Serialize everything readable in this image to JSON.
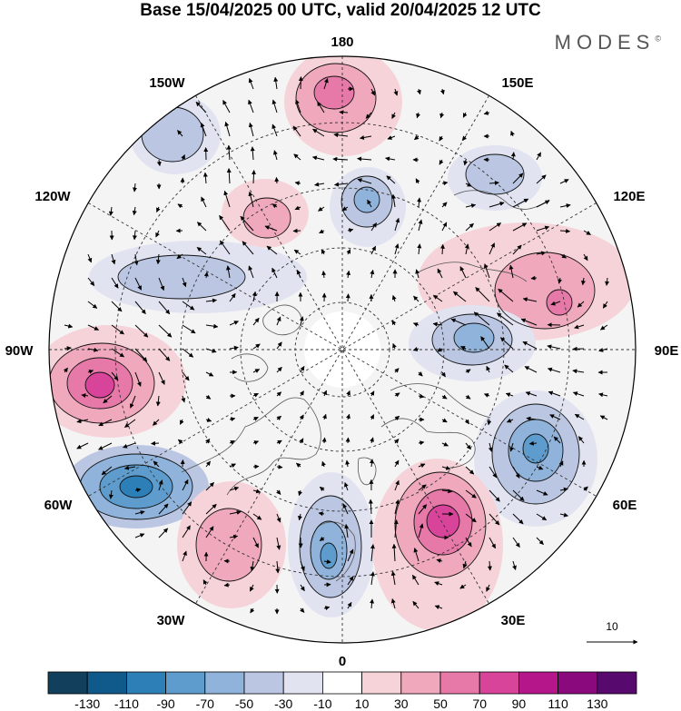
{
  "title": "Base 15/04/2025 00 UTC, valid 20/04/2025 12 UTC",
  "brand": "MODES",
  "brand_mark": "©",
  "longitude_labels": {
    "lon_180": "180",
    "lon_150w": "150W",
    "lon_150e": "150E",
    "lon_120w": "120W",
    "lon_120e": "120E",
    "lon_90w": "90W",
    "lon_90e": "90E",
    "lon_60w": "60W",
    "lon_60e": "60E",
    "lon_30w": "30W",
    "lon_30e": "30E",
    "lon_0": "0"
  },
  "reference_vector": {
    "value": "10"
  },
  "colorbar": {
    "labels": [
      "-130",
      "-110",
      "-90",
      "-70",
      "-50",
      "-30",
      "-10",
      "10",
      "30",
      "50",
      "70",
      "90",
      "110",
      "130"
    ],
    "colors": [
      "#123f5c",
      "#0f5a8a",
      "#2d7fb8",
      "#5d9ccd",
      "#8fb3da",
      "#bac6e2",
      "#e1e3f1",
      "#ffffff",
      "#f6d3d9",
      "#efa8bc",
      "#e779a8",
      "#d8449a",
      "#b5178a",
      "#8a0a7e",
      "#58096e"
    ]
  },
  "anomalies": [
    {
      "name": "pos-180",
      "sign": "pos",
      "peak": 70
    },
    {
      "name": "neg-150w",
      "sign": "neg",
      "peak": -50
    },
    {
      "name": "pos-140w",
      "sign": "pos",
      "peak": 50
    },
    {
      "name": "neg-165e",
      "sign": "neg",
      "peak": -50
    },
    {
      "name": "neg-135e",
      "sign": "neg",
      "peak": -50
    },
    {
      "name": "neg-110w",
      "sign": "neg",
      "peak": -50
    },
    {
      "name": "pos-100e",
      "sign": "pos",
      "peak": 70
    },
    {
      "name": "pos-90w",
      "sign": "pos",
      "peak": 90
    },
    {
      "name": "neg-90e",
      "sign": "neg",
      "peak": -70
    },
    {
      "name": "neg-60w",
      "sign": "neg",
      "peak": -90
    },
    {
      "name": "neg-60e",
      "sign": "neg",
      "peak": -90
    },
    {
      "name": "pos-40w",
      "sign": "pos",
      "peak": 50
    },
    {
      "name": "neg-10e",
      "sign": "neg",
      "peak": -90
    },
    {
      "name": "pos-35e",
      "sign": "pos",
      "peak": 90
    }
  ]
}
